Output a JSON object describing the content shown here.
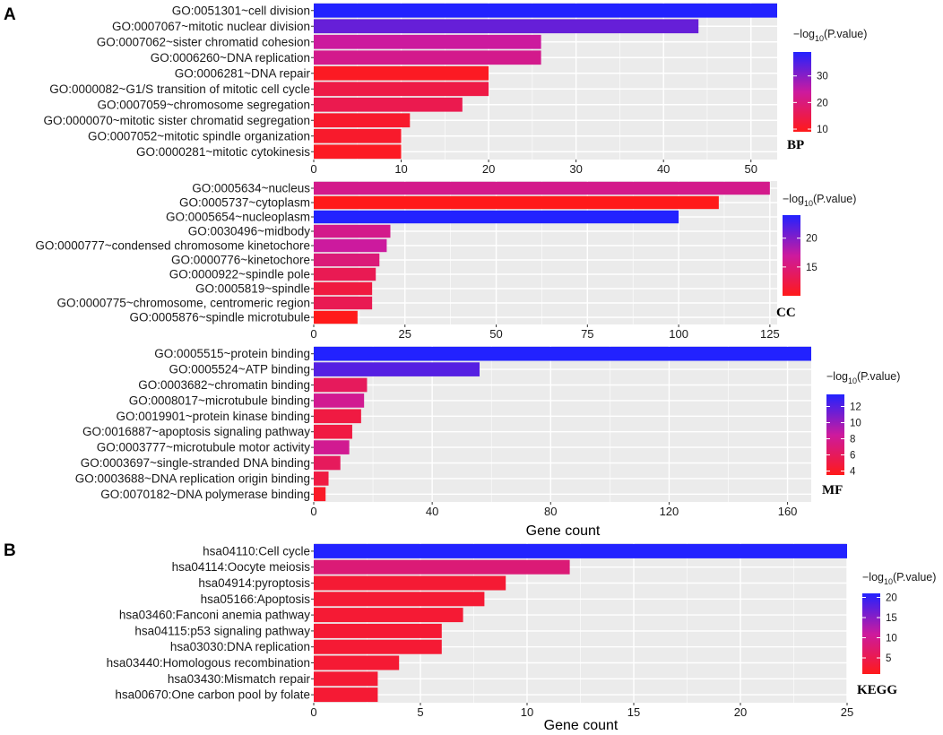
{
  "panel_labels": {
    "a": "A",
    "b": "B"
  },
  "x_axis_title": "Gene count",
  "legend_title_main": "−log",
  "legend_title_sub": "10",
  "legend_title_tail": "(P.value)",
  "colors": {
    "low": "#ff1a1a",
    "mid": "#cc1a9e",
    "high": "#2222ff",
    "panel_bg": "#ebebeb",
    "grid": "#ffffff"
  },
  "chart_data": [
    {
      "type": "bar",
      "orientation": "horizontal",
      "tag": "BP",
      "categories": [
        "GO:0051301~cell division",
        "GO:0007067~mitotic nuclear division",
        "GO:0007062~sister chromatid cohesion",
        "GO:0006260~DNA replication",
        "GO:0006281~DNA repair",
        "GO:0000082~G1/S transition of mitotic cell cycle",
        "GO:0007059~chromosome segregation",
        "GO:0000070~mitotic sister chromatid segregation",
        "GO:0007052~mitotic spindle organization",
        "GO:0000281~mitotic cytokinesis"
      ],
      "values": [
        53,
        44,
        26,
        26,
        20,
        20,
        17,
        11,
        10,
        10
      ],
      "neg_log10_p": [
        39,
        33,
        24,
        22,
        10,
        14,
        15,
        11,
        11,
        10
      ],
      "xlim": [
        0,
        53
      ],
      "xticks": [
        0,
        10,
        20,
        30,
        40,
        50
      ],
      "color_range": [
        9,
        39
      ],
      "color_ticks": [
        10,
        20,
        30
      ]
    },
    {
      "type": "bar",
      "orientation": "horizontal",
      "tag": "CC",
      "categories": [
        "GO:0005634~nucleus",
        "GO:0005737~cytoplasm",
        "GO:0005654~nucleoplasm",
        "GO:0030496~midbody",
        "GO:0000777~condensed chromosome kinetochore",
        "GO:0000776~kinetochore",
        "GO:0000922~spindle pole",
        "GO:0005819~spindle",
        "GO:0000775~chromosome, centromeric region",
        "GO:0005876~spindle microtubule"
      ],
      "values": [
        125,
        111,
        100,
        21,
        20,
        18,
        17,
        16,
        16,
        12
      ],
      "neg_log10_p": [
        16,
        10,
        24,
        16,
        17,
        15,
        13,
        12,
        13,
        10
      ],
      "xlim": [
        0,
        127
      ],
      "xticks": [
        0,
        25,
        50,
        75,
        100,
        125
      ],
      "color_range": [
        10,
        24
      ],
      "color_ticks": [
        15,
        20
      ]
    },
    {
      "type": "bar",
      "orientation": "horizontal",
      "tag": "MF",
      "categories": [
        "GO:0005515~protein binding",
        "GO:0005524~ATP binding",
        "GO:0003682~chromatin binding",
        "GO:0008017~microtubule binding",
        "GO:0019901~protein kinase binding",
        "GO:0016887~apoptosis signaling pathway",
        "GO:0003777~microtubule motor activity",
        "GO:0003697~single-stranded DNA binding",
        "GO:0003688~DNA replication origin binding",
        "GO:0070182~DNA polymerase binding"
      ],
      "values": [
        168,
        56,
        18,
        17,
        16,
        13,
        12,
        9,
        5,
        4
      ],
      "neg_log10_p": [
        13.5,
        12,
        6,
        8,
        5,
        5,
        8,
        6,
        5,
        4
      ],
      "xlim": [
        0,
        168
      ],
      "xticks": [
        0,
        40,
        80,
        120,
        160
      ],
      "color_range": [
        3.5,
        13.5
      ],
      "color_ticks": [
        4,
        6,
        8,
        10,
        12
      ]
    },
    {
      "type": "bar",
      "orientation": "horizontal",
      "tag": "KEGG",
      "categories": [
        "hsa04110:Cell cycle",
        "hsa04114:Oocyte meiosis",
        "hsa04914:pyroptosis",
        "hsa05166:Apoptosis",
        "hsa03460:Fanconi anemia pathway",
        "hsa04115:p53 signaling pathway",
        "hsa03030:DNA replication",
        "hsa03440:Homologous recombination",
        "hsa03430:Mismatch repair",
        "hsa00670:One carbon pool by folate"
      ],
      "values": [
        25,
        12,
        9,
        8,
        7,
        6,
        6,
        4,
        3,
        3
      ],
      "neg_log10_p": [
        21,
        8,
        3,
        3,
        3,
        3,
        3,
        3,
        3,
        3
      ],
      "xlim": [
        0,
        25
      ],
      "xticks": [
        0,
        5,
        10,
        15,
        20,
        25
      ],
      "color_range": [
        1,
        21
      ],
      "color_ticks": [
        5,
        10,
        15,
        20
      ]
    }
  ]
}
